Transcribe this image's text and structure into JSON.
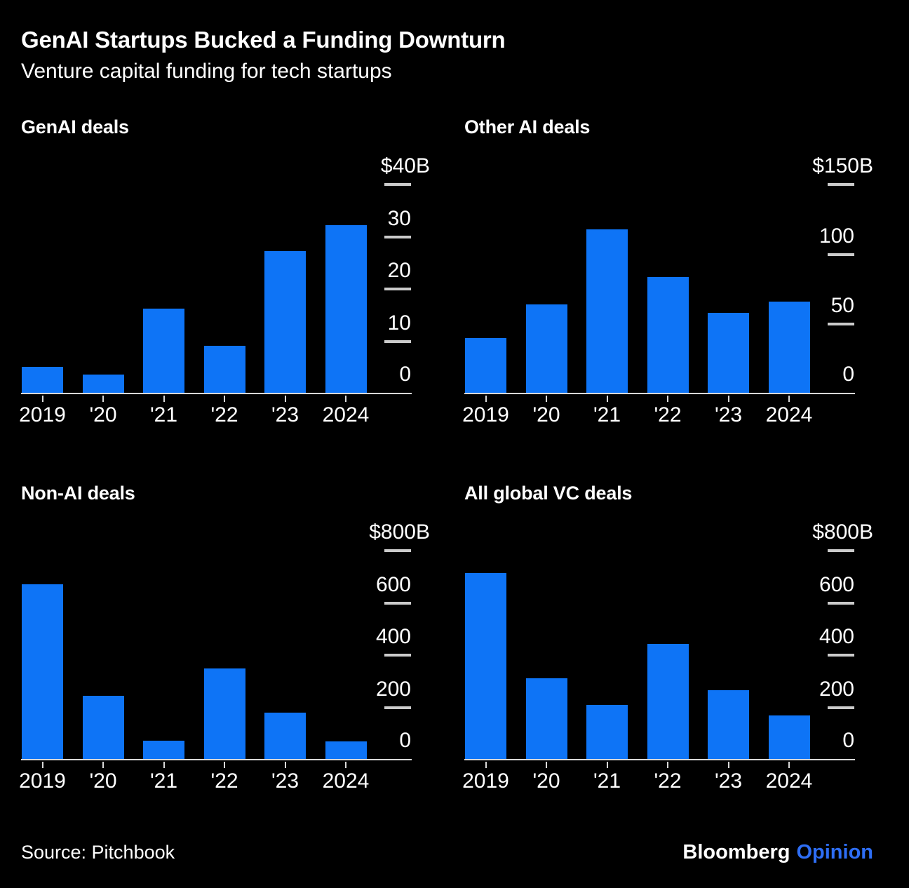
{
  "header": {
    "title": "GenAI Startups Bucked a Funding Downturn",
    "subtitle": "Venture capital funding for tech startups"
  },
  "footer": {
    "source": "Source: Pitchbook",
    "logo_bloomberg": "Bloomberg",
    "logo_opinion": "Opinion"
  },
  "colors": {
    "background": "#000000",
    "text": "#ffffff",
    "bar": "#0e74f6",
    "axis": "#d8d8d8",
    "tick_dash": "#cbcbcb",
    "logo_opinion_blue": "#2e6ef5"
  },
  "chart_data": [
    {
      "type": "bar",
      "title": "GenAI deals",
      "categories": [
        "2019",
        "'20",
        "'21",
        "'22",
        "'23",
        "2024"
      ],
      "values": [
        5,
        3.5,
        16,
        9,
        27,
        32
      ],
      "unit": "$B",
      "ylim": [
        0,
        40
      ],
      "grid": false,
      "yaxis_position": "right",
      "yticks": [
        {
          "v": 0,
          "label": "0"
        },
        {
          "v": 10,
          "label": "10"
        },
        {
          "v": 20,
          "label": "20"
        },
        {
          "v": 30,
          "label": "30"
        },
        {
          "v": 40,
          "label": "$40B",
          "max": true
        }
      ]
    },
    {
      "type": "bar",
      "title": "Other AI deals",
      "categories": [
        "2019",
        "'20",
        "'21",
        "'22",
        "'23",
        "2024"
      ],
      "values": [
        39,
        63,
        117,
        83,
        57,
        65
      ],
      "unit": "$B",
      "ylim": [
        0,
        150
      ],
      "grid": false,
      "yaxis_position": "right",
      "yticks": [
        {
          "v": 0,
          "label": "0"
        },
        {
          "v": 50,
          "label": "50"
        },
        {
          "v": 100,
          "label": "100"
        },
        {
          "v": 150,
          "label": "$150B",
          "max": true
        }
      ]
    },
    {
      "type": "bar",
      "title": "Non-AI deals",
      "categories": [
        "2019",
        "'20",
        "'21",
        "'22",
        "'23",
        "2024"
      ],
      "values": [
        665,
        240,
        70,
        345,
        176,
        67
      ],
      "unit": "$B",
      "ylim": [
        0,
        800
      ],
      "grid": false,
      "yaxis_position": "right",
      "yticks": [
        {
          "v": 0,
          "label": "0"
        },
        {
          "v": 200,
          "label": "200"
        },
        {
          "v": 400,
          "label": "400"
        },
        {
          "v": 600,
          "label": "600"
        },
        {
          "v": 800,
          "label": "$800B",
          "max": true
        }
      ]
    },
    {
      "type": "bar",
      "title": "All global VC deals",
      "categories": [
        "2019",
        "'20",
        "'21",
        "'22",
        "'23",
        "2024"
      ],
      "values": [
        710,
        308,
        206,
        440,
        263,
        165
      ],
      "unit": "$B",
      "ylim": [
        0,
        800
      ],
      "grid": false,
      "yaxis_position": "right",
      "yticks": [
        {
          "v": 0,
          "label": "0"
        },
        {
          "v": 200,
          "label": "200"
        },
        {
          "v": 400,
          "label": "400"
        },
        {
          "v": 600,
          "label": "600"
        },
        {
          "v": 800,
          "label": "$800B",
          "max": true
        }
      ]
    }
  ]
}
